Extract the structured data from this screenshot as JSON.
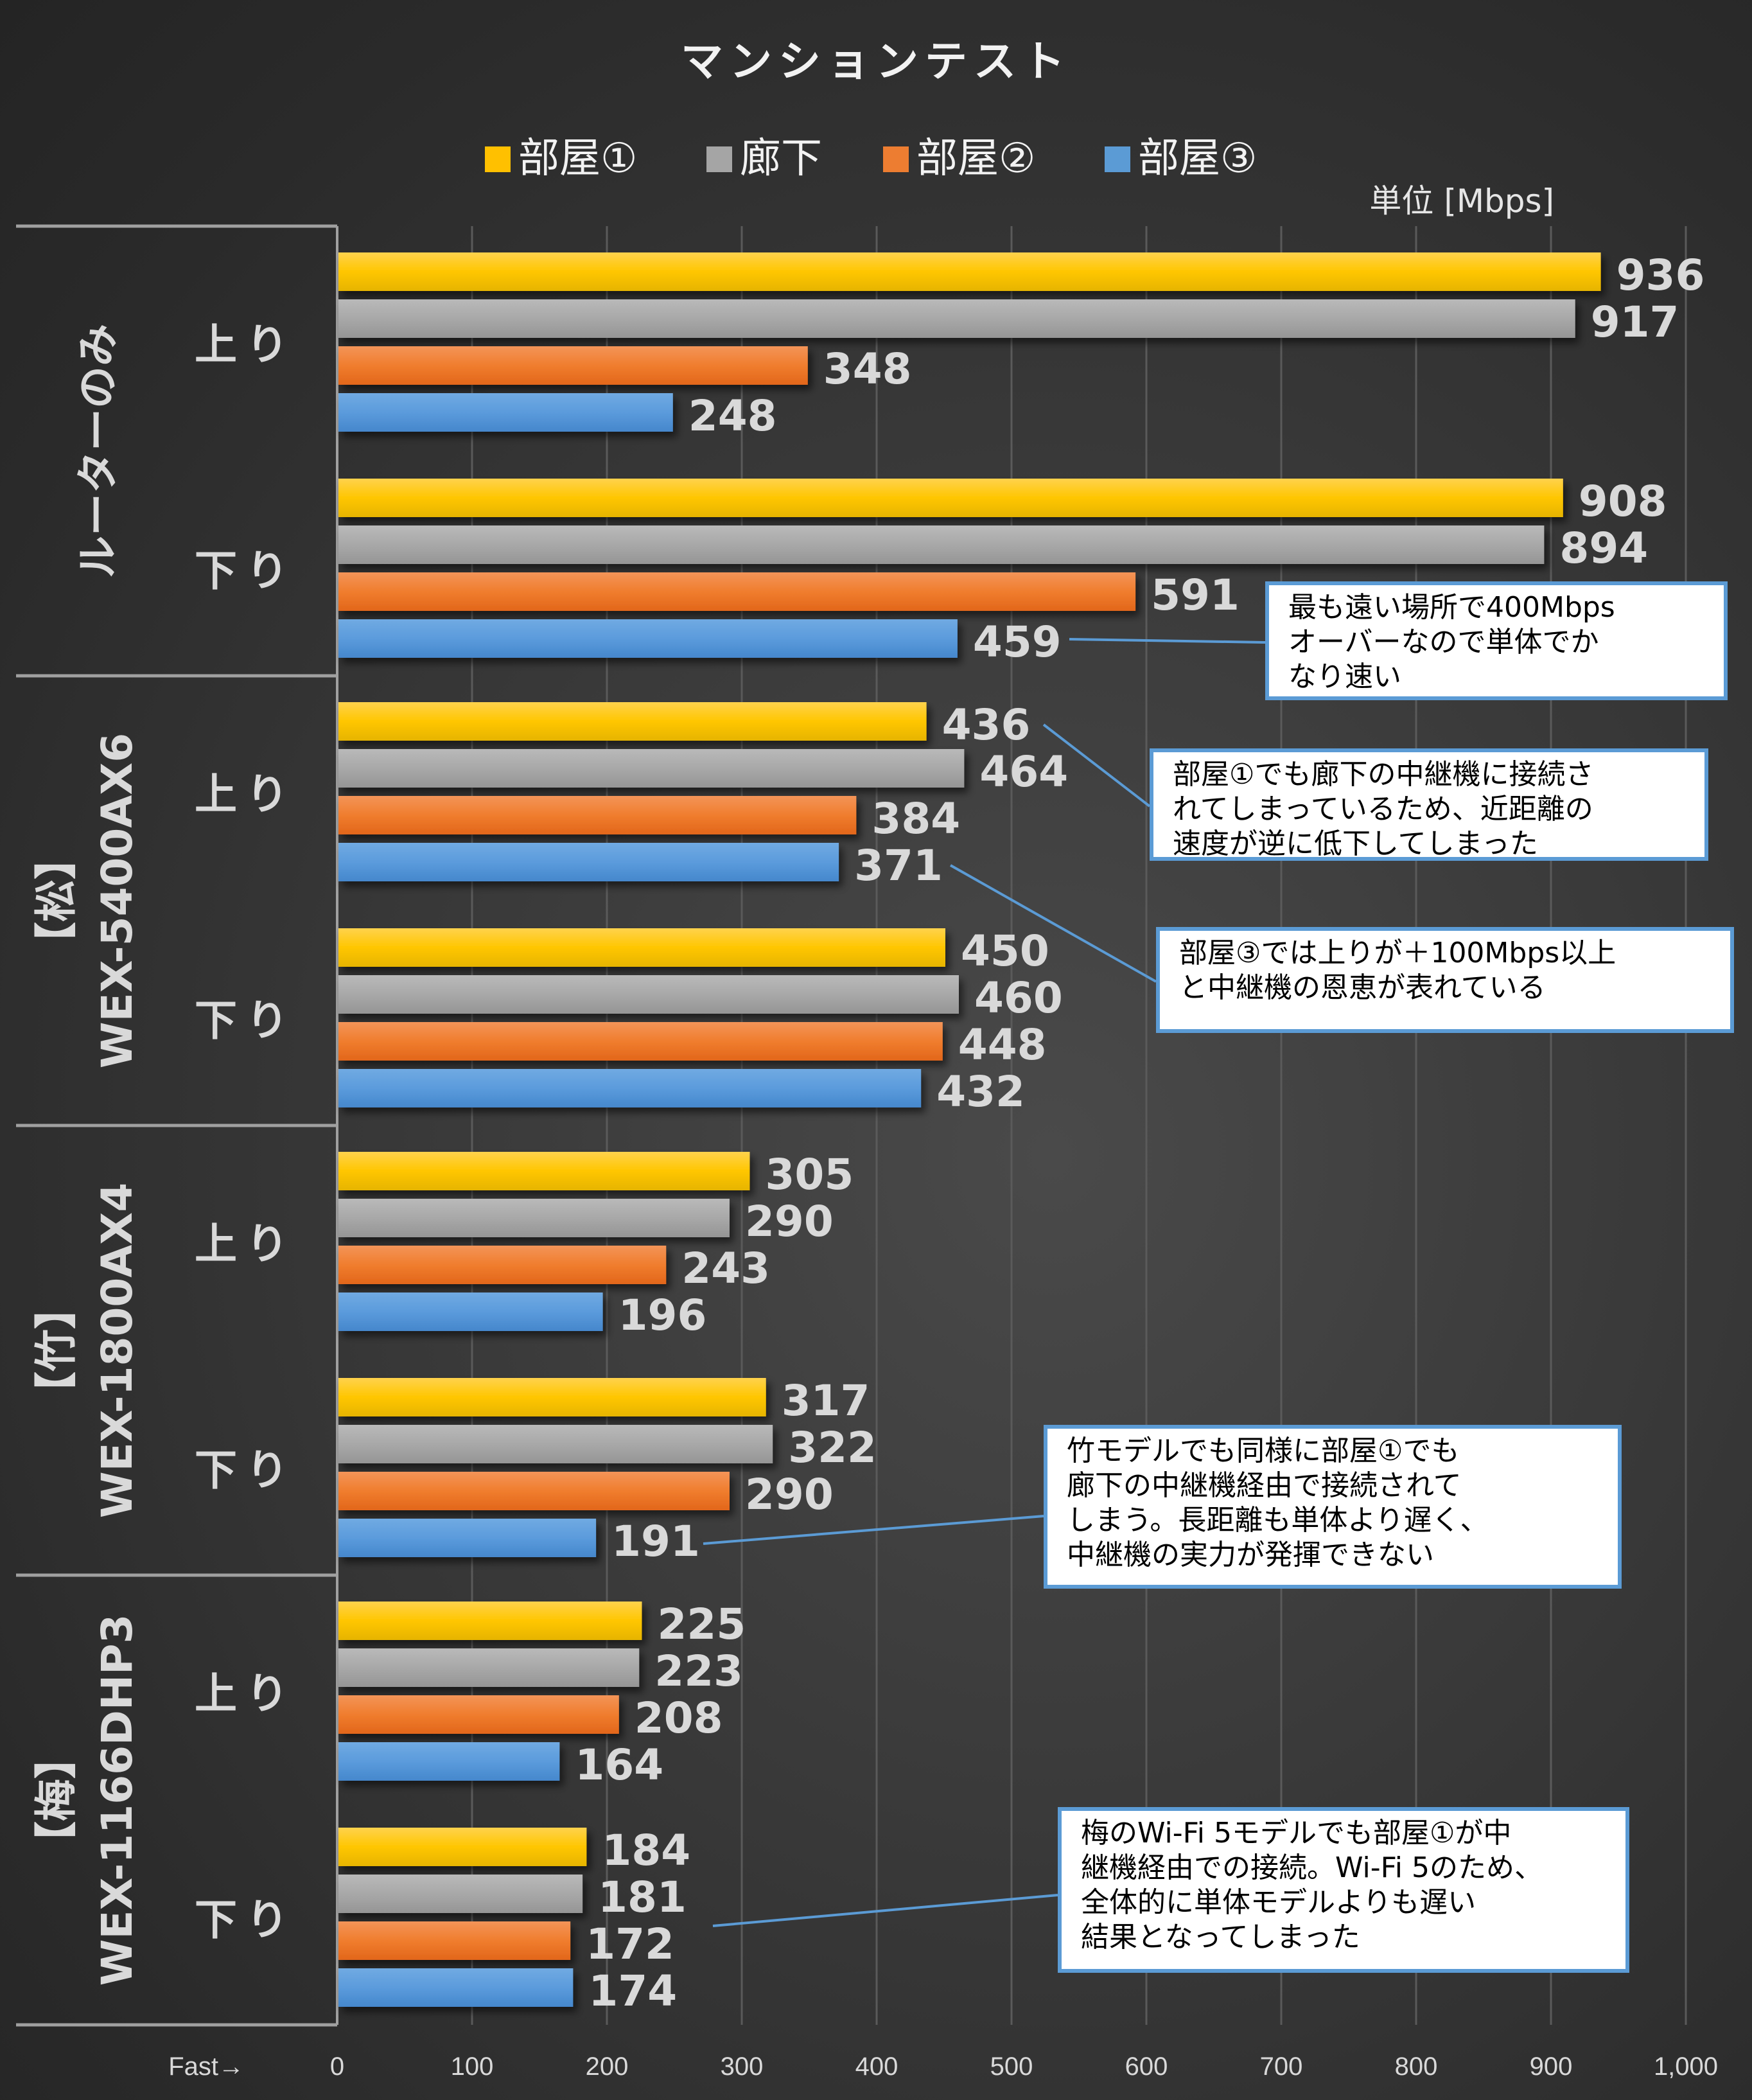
{
  "chart_data": {
    "type": "bar",
    "orientation": "horizontal",
    "title": "マンションテスト",
    "unit_label": "単位 [Mbps]",
    "xlabel": "Fast→",
    "xlim": [
      0,
      1000
    ],
    "x_ticks": [
      "0",
      "100",
      "200",
      "300",
      "400",
      "500",
      "600",
      "700",
      "800",
      "900",
      "1,000"
    ],
    "grid": true,
    "legend_position": "top",
    "series": [
      {
        "name": "部屋①",
        "color": "#ffc000"
      },
      {
        "name": "廊下",
        "color": "#a5a5a5"
      },
      {
        "name": "部屋②",
        "color": "#ed7d31"
      },
      {
        "name": "部屋③",
        "color": "#5b9bd5"
      }
    ],
    "groups": [
      {
        "label": "ルーターのみ",
        "clusters": [
          {
            "label": "上り",
            "values": [
              936,
              917,
              348,
              248
            ]
          },
          {
            "label": "下り",
            "values": [
              908,
              894,
              591,
              459
            ]
          }
        ]
      },
      {
        "label": "【松】\nWEX-5400AX6",
        "clusters": [
          {
            "label": "上り",
            "values": [
              436,
              464,
              384,
              371
            ]
          },
          {
            "label": "下り",
            "values": [
              450,
              460,
              448,
              432
            ]
          }
        ]
      },
      {
        "label": "【竹】\nWEX-1800AX4",
        "clusters": [
          {
            "label": "上り",
            "values": [
              305,
              290,
              243,
              196
            ]
          },
          {
            "label": "下り",
            "values": [
              317,
              322,
              290,
              191
            ]
          }
        ]
      },
      {
        "label": "【梅】\nWEX-1166DHP3",
        "clusters": [
          {
            "label": "上り",
            "values": [
              225,
              223,
              208,
              164
            ]
          },
          {
            "label": "下り",
            "values": [
              184,
              181,
              172,
              174
            ]
          }
        ]
      }
    ],
    "annotations": [
      {
        "text": "最も遠い場所で400Mbps\nオーバーなので単体でか\nなり速い",
        "points_to": "ルーターのみ 下り 部屋③ 459"
      },
      {
        "text": "部屋①でも廊下の中継機に接続さ\nれてしまっているため、近距離の\n速度が逆に低下してしまった",
        "points_to": "WEX-5400AX6 上り 部屋① 436"
      },
      {
        "text": "部屋③では上りが＋100Mbps以上\nと中継機の恩恵が表れている",
        "points_to": "WEX-5400AX6 上り 部屋③ 371"
      },
      {
        "text": "竹モデルでも同様に部屋①でも\n廊下の中継機経由で接続されて\nしまう。長距離も単体より遅く、\n中継機の実力が発揮できない",
        "points_to": "WEX-1800AX4 下り 部屋③ 191"
      },
      {
        "text": "梅のWi-Fi 5モデルでも部屋①が中\n継機経由での接続。Wi-Fi 5のため、\n全体的に単体モデルよりも遅い\n結果となってしまった",
        "points_to": "WEX-1166DHP3 下り"
      }
    ]
  }
}
